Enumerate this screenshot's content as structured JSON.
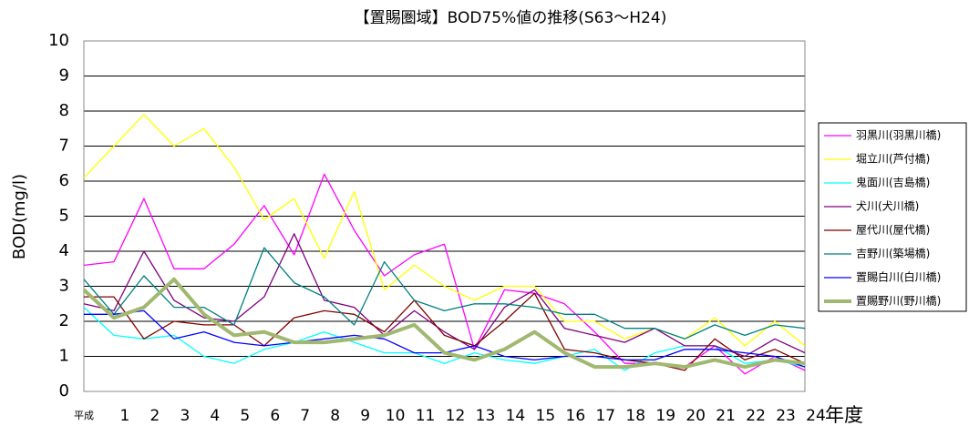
{
  "chart_data": {
    "type": "line",
    "title": "【置賜圏域】BOD75%値の推移(S63～H24)",
    "y_label": "BOD(mg/l)",
    "x_label": "年度",
    "categories": [
      "平成",
      "1",
      "2",
      "3",
      "4",
      "5",
      "6",
      "7",
      "8",
      "9",
      "10",
      "11",
      "12",
      "13",
      "14",
      "15",
      "16",
      "17",
      "18",
      "19",
      "20",
      "21",
      "22",
      "23",
      "24"
    ],
    "ylim": [
      0,
      10
    ],
    "yticks": [
      0,
      1,
      2,
      3,
      4,
      5,
      6,
      7,
      8,
      9,
      10
    ],
    "grid": true,
    "legend": "right",
    "series": [
      {
        "name": "羽黒川(羽黒川橋)",
        "color": "#ff00ff",
        "values": [
          3.6,
          3.7,
          5.5,
          3.5,
          3.5,
          4.2,
          5.3,
          3.9,
          6.2,
          4.6,
          3.3,
          3.9,
          4.2,
          1.2,
          2.9,
          2.8,
          2.5,
          1.7,
          0.8,
          0.8,
          0.7,
          1.3,
          0.5,
          1.0,
          0.6
        ]
      },
      {
        "name": "堀立川(芦付橋)",
        "color": "#ffff00",
        "values": [
          6.1,
          7.0,
          7.9,
          7.0,
          7.5,
          6.4,
          4.9,
          5.5,
          3.8,
          5.7,
          2.9,
          3.6,
          3.0,
          2.6,
          3.0,
          3.0,
          2.0,
          2.0,
          1.5,
          1.8,
          1.5,
          2.1,
          1.3,
          2.0,
          1.3
        ]
      },
      {
        "name": "鬼面川(吉島橋)",
        "color": "#00ffff",
        "values": [
          2.4,
          1.6,
          1.5,
          1.6,
          1.0,
          0.8,
          1.2,
          1.4,
          1.7,
          1.4,
          1.1,
          1.1,
          0.8,
          1.1,
          0.9,
          0.8,
          1.0,
          1.2,
          0.6,
          1.1,
          1.3,
          1.3,
          0.8,
          0.9,
          0.7
        ]
      },
      {
        "name": "犬川(犬川橋)",
        "color": "#800080",
        "values": [
          2.5,
          2.3,
          4.0,
          2.6,
          2.1,
          2.0,
          2.7,
          4.5,
          2.6,
          2.4,
          1.6,
          2.3,
          1.7,
          1.2,
          2.4,
          2.9,
          1.8,
          1.6,
          1.4,
          1.8,
          1.3,
          1.3,
          1.0,
          1.5,
          1.1
        ]
      },
      {
        "name": "屋代川(屋代橋)",
        "color": "#800000",
        "values": [
          2.7,
          2.7,
          1.5,
          2.0,
          1.9,
          1.9,
          1.3,
          2.1,
          2.3,
          2.2,
          1.7,
          2.6,
          1.6,
          1.3,
          2.0,
          2.8,
          1.2,
          1.1,
          0.9,
          0.8,
          0.6,
          1.5,
          0.9,
          1.2,
          0.8
        ]
      },
      {
        "name": "吉野川(築場橋)",
        "color": "#008080",
        "values": [
          3.2,
          2.2,
          3.3,
          2.4,
          2.4,
          1.9,
          4.1,
          3.1,
          2.7,
          1.9,
          3.7,
          2.6,
          2.3,
          2.5,
          2.5,
          2.4,
          2.2,
          2.2,
          1.8,
          1.8,
          1.5,
          1.9,
          1.6,
          1.9,
          1.8
        ]
      },
      {
        "name": "置賜白川(白川橋)",
        "color": "#0000ff",
        "values": [
          2.2,
          2.2,
          2.3,
          1.5,
          1.7,
          1.4,
          1.3,
          1.4,
          1.5,
          1.6,
          1.5,
          1.1,
          1.1,
          1.3,
          1.0,
          0.9,
          1.0,
          1.0,
          0.9,
          0.9,
          1.2,
          1.2,
          1.1,
          1.0,
          0.7
        ]
      },
      {
        "name": "置賜野川(野川橋)",
        "color": "#a0b870",
        "values": [
          2.9,
          2.1,
          2.4,
          3.2,
          2.2,
          1.6,
          1.7,
          1.4,
          1.4,
          1.5,
          1.6,
          1.9,
          1.1,
          0.9,
          1.2,
          1.7,
          1.1,
          0.7,
          0.7,
          0.8,
          0.7,
          0.9,
          0.7,
          0.9,
          0.8
        ]
      }
    ]
  }
}
